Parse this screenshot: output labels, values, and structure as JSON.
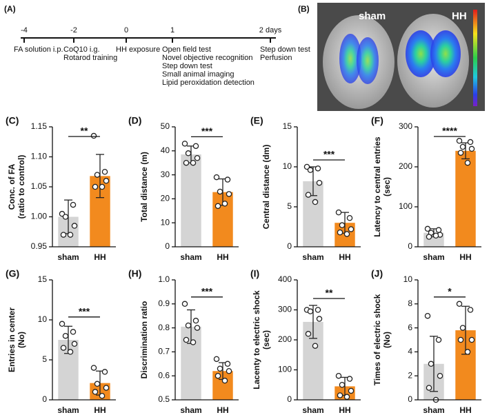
{
  "timeline": {
    "panel": "(A)",
    "events": [
      {
        "label": "-4",
        "lines": [
          "FA solution i.p."
        ]
      },
      {
        "label": "-2",
        "lines": [
          "CoQ10 i.g.",
          "Rotarod training"
        ]
      },
      {
        "label": "0",
        "lines": [
          "HH exposure"
        ]
      },
      {
        "label": "1",
        "lines": [
          "Open field test",
          "Novel objective recognition",
          "Step down test",
          "Small animal imaging",
          "Lipid peroxidation detection"
        ]
      },
      {
        "label": "2 days",
        "lines": [
          "Step down test",
          "Perfusion"
        ]
      }
    ]
  },
  "image": {
    "panel": "(B)",
    "labels": [
      "sham",
      "HH"
    ]
  },
  "chart_data": [
    {
      "type": "bar",
      "panel": "(C)",
      "ylabel": [
        "Conc. of FA",
        "(ratio to control)"
      ],
      "categories": [
        "sham",
        "HH"
      ],
      "colors": [
        "#d4d4d4",
        "#f28a1e"
      ],
      "values": [
        1.0,
        1.068
      ],
      "errors": [
        0.028,
        0.036
      ],
      "points": [
        [
          1.005,
          1.02,
          1.0,
          0.985,
          0.97,
          0.97
        ],
        [
          1.135,
          1.075,
          1.07,
          1.06,
          1.05,
          1.05
        ]
      ],
      "significance": "**",
      "ylim": [
        0.95,
        1.15
      ],
      "yticks": [
        0.95,
        {
          "value": 1.0,
          "label": "1.00"
        },
        1.05,
        {
          "value": 1.1,
          "label": "1.10"
        },
        1.15
      ]
    },
    {
      "type": "bar",
      "panel": "(D)",
      "ylabel": [
        "Total distance (m)"
      ],
      "categories": [
        "sham",
        "HH"
      ],
      "colors": [
        "#d4d4d4",
        "#f28a1e"
      ],
      "values": [
        38.5,
        22.8
      ],
      "errors": [
        3.5,
        5.5
      ],
      "points": [
        [
          43,
          42,
          39,
          37,
          35,
          35
        ],
        [
          29,
          28,
          23,
          22,
          17,
          18
        ]
      ],
      "significance": "***",
      "ylim": [
        0,
        50
      ],
      "yticks": [
        0,
        10,
        20,
        30,
        40,
        50
      ]
    },
    {
      "type": "bar",
      "panel": "(E)",
      "ylabel": [
        "Central distance (dm)"
      ],
      "categories": [
        "sham",
        "HH"
      ],
      "colors": [
        "#d4d4d4",
        "#f28a1e"
      ],
      "values": [
        8.2,
        3.0
      ],
      "errors": [
        1.8,
        1.3
      ],
      "points": [
        [
          10,
          9.8,
          9.6,
          8,
          6.5,
          5.6
        ],
        [
          4.3,
          3.6,
          2.7,
          2.2,
          1.8,
          1.6
        ]
      ],
      "significance": "***",
      "ylim": [
        0,
        15
      ],
      "yticks": [
        0,
        5,
        10,
        15
      ]
    },
    {
      "type": "bar",
      "panel": "(F)",
      "ylabel": [
        "Latency to central entries",
        "(sec)"
      ],
      "categories": [
        "sham",
        "HH"
      ],
      "colors": [
        "#d4d4d4",
        "#f28a1e"
      ],
      "values": [
        35,
        240
      ],
      "errors": [
        10,
        20
      ],
      "points": [
        [
          45,
          42,
          35,
          30,
          25,
          28
        ],
        [
          265,
          262,
          250,
          245,
          235,
          210
        ]
      ],
      "significance": "****",
      "ylim": [
        0,
        300
      ],
      "yticks": [
        0,
        100,
        200,
        300
      ]
    },
    {
      "type": "bar",
      "panel": "(G)",
      "ylabel": [
        "Entries in center",
        "(No)"
      ],
      "categories": [
        "sham",
        "HH"
      ],
      "colors": [
        "#d4d4d4",
        "#f28a1e"
      ],
      "values": [
        7.5,
        2.1
      ],
      "errors": [
        1.7,
        1.5
      ],
      "points": [
        [
          9.5,
          8.5,
          8,
          7,
          6.5,
          6
        ],
        [
          4,
          3.5,
          2,
          1.5,
          1,
          0.5
        ]
      ],
      "significance": "***",
      "ylim": [
        0,
        15
      ],
      "yticks": [
        0,
        5,
        10,
        15
      ]
    },
    {
      "type": "bar",
      "panel": "(H)",
      "ylabel": [
        "Discrimination ratio"
      ],
      "categories": [
        "sham",
        "HH"
      ],
      "colors": [
        "#d4d4d4",
        "#f28a1e"
      ],
      "values": [
        0.805,
        0.62
      ],
      "errors": [
        0.07,
        0.035
      ],
      "points": [
        [
          0.9,
          0.83,
          0.81,
          0.8,
          0.75,
          0.74
        ],
        [
          0.67,
          0.65,
          0.63,
          0.62,
          0.6,
          0.58
        ]
      ],
      "significance": "***",
      "ylim": [
        0.5,
        1.0
      ],
      "yticks": [
        0.5,
        0.6,
        0.7,
        0.8,
        0.9,
        {
          "value": 1.0,
          "label": "1.0"
        }
      ]
    },
    {
      "type": "bar",
      "panel": "(I)",
      "ylabel": [
        "Lacenty to electric shock",
        "(sec)"
      ],
      "categories": [
        "sham",
        "HH"
      ],
      "colors": [
        "#d4d4d4",
        "#f28a1e"
      ],
      "values": [
        260,
        45
      ],
      "errors": [
        55,
        30
      ],
      "points": [
        [
          300,
          300,
          295,
          270,
          220,
          180
        ],
        [
          80,
          70,
          50,
          30,
          15,
          10
        ]
      ],
      "significance": "**",
      "ylim": [
        0,
        400
      ],
      "yticks": [
        0,
        100,
        200,
        300,
        400
      ]
    },
    {
      "type": "bar",
      "panel": "(J)",
      "ylabel": [
        "Times of electric shock",
        "(No)"
      ],
      "categories": [
        "sham",
        "HH"
      ],
      "colors": [
        "#d4d4d4",
        "#f28a1e"
      ],
      "values": [
        3,
        5.8
      ],
      "errors": [
        2.3,
        2
      ],
      "points": [
        [
          7,
          5,
          3,
          2,
          1,
          0
        ],
        [
          8,
          7.5,
          6,
          5,
          5,
          4
        ]
      ],
      "significance": "*",
      "ylim": [
        0,
        10
      ],
      "yticks": [
        0,
        2,
        4,
        6,
        8,
        10
      ]
    }
  ]
}
